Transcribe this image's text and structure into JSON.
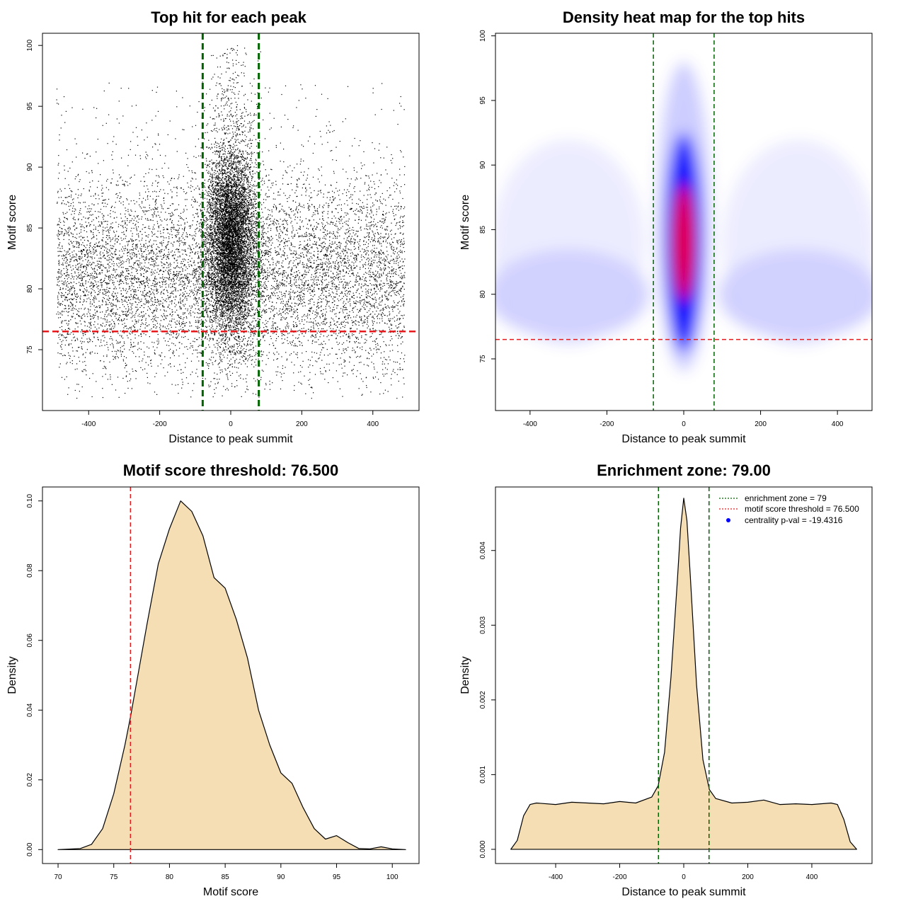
{
  "colors": {
    "threshold_line": "#e41a1c",
    "zone_line": "#006400",
    "density_fill": "#f5deb3",
    "scatter_point": "#000000",
    "heat_low": "#ffffff",
    "heat_mid": "#0000ff",
    "heat_high": "#ff0000",
    "legend_point": "#0000ff"
  },
  "chart_data": [
    {
      "id": "scatter",
      "type": "scatter",
      "title": "Top hit for each peak",
      "xlabel": "Distance to peak summit",
      "ylabel": "Motif score",
      "xlim": [
        -530,
        530
      ],
      "ylim": [
        70,
        101
      ],
      "xticks": [
        -400,
        -200,
        0,
        200,
        400
      ],
      "yticks": [
        75,
        80,
        85,
        90,
        95,
        100
      ],
      "xtick_labels": [
        "-400",
        "-200",
        "0",
        "200",
        "400"
      ],
      "ytick_labels": [
        "75",
        "80",
        "85",
        "90",
        "95",
        "100"
      ],
      "vlines": [
        -79,
        79
      ],
      "hline": 76.5,
      "x_range": [
        -490,
        490
      ],
      "point_count_background": 9000,
      "point_count_central": 8000,
      "central_mean": 0,
      "central_sd": 35,
      "score_mean_background": 81,
      "score_sd_background": 4,
      "score_mean_central": 84,
      "score_sd_central": 4
    },
    {
      "id": "heat",
      "type": "heatmap",
      "title": "Density heat map for the top hits",
      "xlabel": "Distance to peak summit",
      "ylabel": "Motif score",
      "xlim": [
        -490,
        490
      ],
      "ylim": [
        71,
        100.2
      ],
      "xticks": [
        -400,
        -200,
        0,
        200,
        400
      ],
      "yticks": [
        75,
        80,
        85,
        90,
        95,
        100
      ],
      "xtick_labels": [
        "-400",
        "-200",
        "0",
        "200",
        "400"
      ],
      "ytick_labels": [
        "75",
        "80",
        "85",
        "90",
        "95",
        "100"
      ],
      "vlines": [
        -79,
        79
      ],
      "hline": 76.5
    },
    {
      "id": "score_density",
      "type": "area",
      "title": "Motif score threshold: 76.500",
      "xlabel": "Motif score",
      "ylabel": "Density",
      "xlim": [
        68.6,
        102.4
      ],
      "ylim": [
        -0.004,
        0.104
      ],
      "xticks": [
        70,
        75,
        80,
        85,
        90,
        95,
        100
      ],
      "yticks": [
        0.0,
        0.02,
        0.04,
        0.06,
        0.08,
        0.1
      ],
      "xtick_labels": [
        "70",
        "75",
        "80",
        "85",
        "90",
        "95",
        "100"
      ],
      "ytick_labels": [
        "0.00",
        "0.02",
        "0.04",
        "0.06",
        "0.08",
        "0.10"
      ],
      "vline": 76.5,
      "x": [
        70,
        72,
        73,
        74,
        75,
        76,
        76.5,
        77,
        78,
        79,
        80,
        81,
        82,
        83,
        84,
        85,
        86,
        87,
        88,
        89,
        90,
        91,
        92,
        93,
        94,
        95,
        96,
        97,
        98,
        99,
        100,
        101.2
      ],
      "y": [
        0.0,
        0.0003,
        0.0015,
        0.006,
        0.016,
        0.03,
        0.038,
        0.047,
        0.065,
        0.082,
        0.092,
        0.1,
        0.097,
        0.09,
        0.078,
        0.075,
        0.066,
        0.055,
        0.04,
        0.03,
        0.022,
        0.019,
        0.012,
        0.006,
        0.003,
        0.004,
        0.002,
        0.0003,
        0.0002,
        0.0008,
        0.0002,
        0.0
      ]
    },
    {
      "id": "distance_density",
      "type": "area",
      "title": "Enrichment zone: 79.00",
      "xlabel": "Distance to peak summit",
      "ylabel": "Density",
      "xlim": [
        -588,
        588
      ],
      "ylim": [
        -0.00019,
        0.00485
      ],
      "xticks": [
        -400,
        -200,
        0,
        200,
        400
      ],
      "yticks": [
        0.0,
        0.001,
        0.002,
        0.003,
        0.004
      ],
      "xtick_labels": [
        "-400",
        "-200",
        "0",
        "200",
        "400"
      ],
      "ytick_labels": [
        "0.000",
        "0.001",
        "0.002",
        "0.003",
        "0.004"
      ],
      "vlines": [
        -79,
        79
      ],
      "x": [
        -540,
        -520,
        -500,
        -480,
        -460,
        -400,
        -350,
        -300,
        -250,
        -200,
        -150,
        -100,
        -80,
        -60,
        -40,
        -20,
        -10,
        0,
        10,
        20,
        40,
        60,
        80,
        100,
        150,
        200,
        250,
        300,
        350,
        400,
        460,
        480,
        500,
        520,
        540
      ],
      "y": [
        0.0,
        0.00012,
        0.00045,
        0.0006,
        0.00062,
        0.0006,
        0.00063,
        0.00062,
        0.00061,
        0.00064,
        0.00062,
        0.0007,
        0.00085,
        0.0013,
        0.0023,
        0.0036,
        0.0043,
        0.0047,
        0.0044,
        0.0037,
        0.0022,
        0.0012,
        0.0008,
        0.00068,
        0.00062,
        0.00063,
        0.00066,
        0.0006,
        0.00061,
        0.0006,
        0.00062,
        0.0006,
        0.0004,
        0.0001,
        0.0
      ],
      "legend": {
        "entries": [
          "enrichment zone = 79",
          "motif score threshold = 76.500",
          "centrality p-val = -19.4316"
        ],
        "position": "top-right"
      }
    }
  ]
}
